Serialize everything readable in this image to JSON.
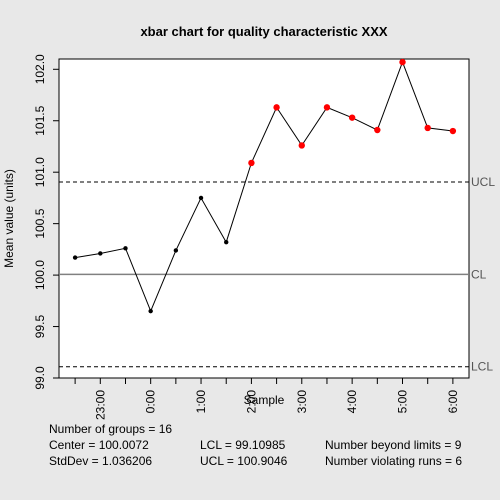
{
  "chart_data": {
    "type": "line",
    "title": "xbar chart for quality characteristic XXX",
    "xlabel": "Sample",
    "ylabel": "Mean value (units)",
    "ylim": [
      99.0,
      102.1
    ],
    "yticks": [
      "99.0",
      "99.5",
      "100.0",
      "100.5",
      "101.0",
      "101.5",
      "102.0"
    ],
    "xtick_labels": [
      "23:00",
      "0:00",
      "1:00",
      "2:00",
      "3:00",
      "4:00",
      "5:00",
      "6:00"
    ],
    "x_tick_positions": [
      2,
      4,
      6,
      8,
      10,
      12,
      14,
      16
    ],
    "series": [
      {
        "values": [
          100.17,
          100.21,
          100.26,
          99.65,
          100.24,
          100.75,
          100.32,
          101.09,
          101.63,
          101.26,
          101.63,
          101.53,
          101.41,
          102.07,
          101.43,
          101.4
        ],
        "color_in_control": "#000000",
        "color_out_of_control": "#ff0000"
      }
    ],
    "control_limits": {
      "center": 100.0072,
      "ucl": 100.9046,
      "lcl": 99.10985,
      "center_label": "CL",
      "ucl_label": "UCL",
      "lcl_label": "LCL"
    },
    "grid": false,
    "legend": "none"
  },
  "stats": {
    "groups": "Number of groups = 16",
    "center": "Center = 100.0072",
    "stddev": "StdDev = 1.036206",
    "lcl": "LCL = 99.10985",
    "ucl": "UCL = 100.9046",
    "beyond": "Number beyond limits = 9",
    "runs": "Number violating runs = 6"
  },
  "colors": {
    "background": "#e8e8e8",
    "plot_background": "#ffffff",
    "line": "#000000",
    "center_line": "#808080",
    "out_of_control": "#ff0000"
  }
}
